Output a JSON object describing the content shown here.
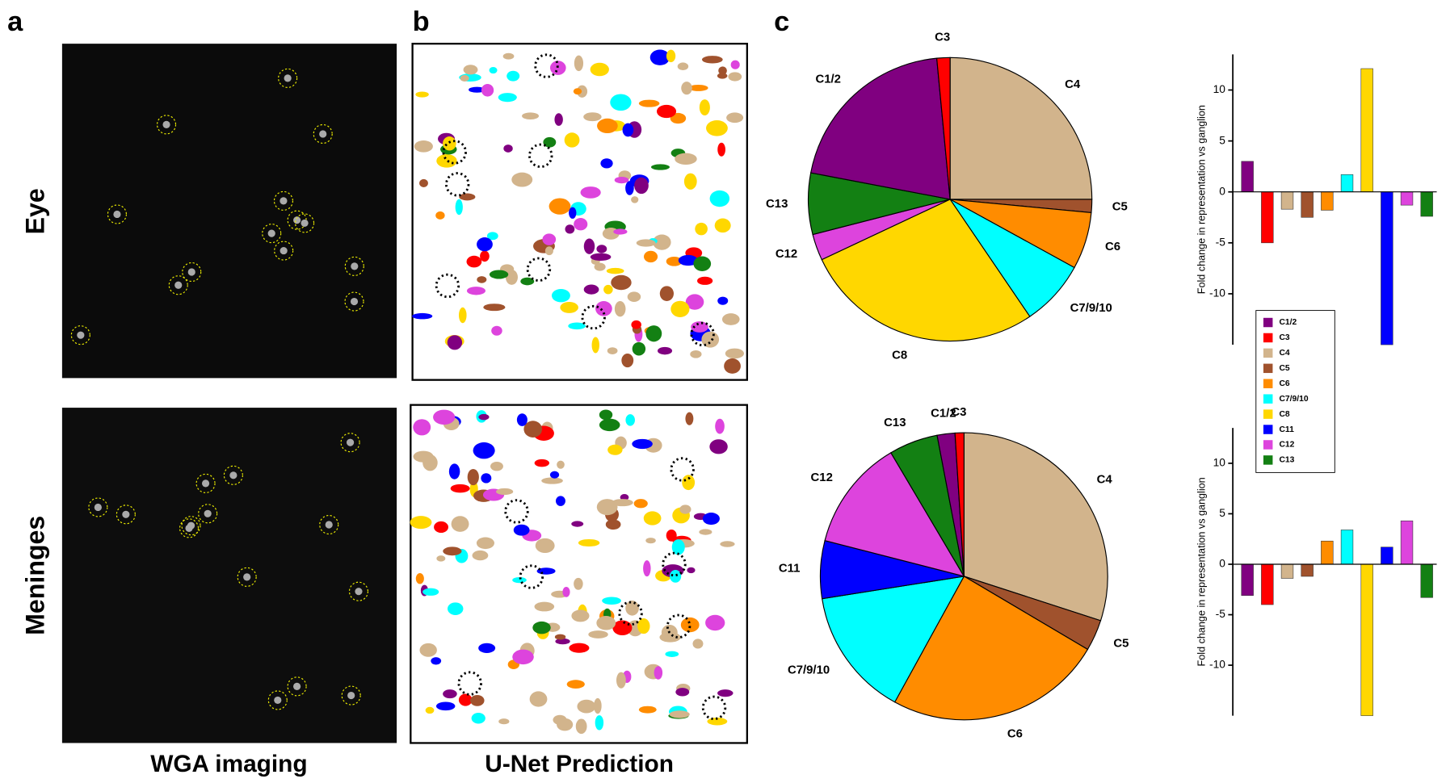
{
  "figure": {
    "panels": [
      "a",
      "b",
      "c"
    ],
    "rows": [
      "Eye",
      "Meninges"
    ],
    "columns": [
      "WGA imaging",
      "U-Net Prediction"
    ]
  },
  "chart_data": [
    {
      "type": "pie",
      "categories": [
        "C4",
        "C5",
        "C6",
        "C7/9/10",
        "C8",
        "C12",
        "C13",
        "C1/2",
        "C3"
      ],
      "values": [
        25,
        1.5,
        6.5,
        7.5,
        27.5,
        3,
        7,
        20.5,
        1.5
      ],
      "colors": [
        "#d2b48c",
        "#a0522d",
        "#ff8c00",
        "#00ffff",
        "#ffd700",
        "#dd44dd",
        "#138013",
        "#800080",
        "#ff0000"
      ]
    },
    {
      "type": "pie",
      "categories": [
        "C4",
        "C5",
        "C6",
        "C7/9/10",
        "C11",
        "C12",
        "C13",
        "C1/2",
        "C3"
      ],
      "values": [
        30,
        3.5,
        24.5,
        14.5,
        6.5,
        12.5,
        5.5,
        2,
        1
      ],
      "colors": [
        "#d2b48c",
        "#a0522d",
        "#ff8c00",
        "#00ffff",
        "#0000ff",
        "#dd44dd",
        "#138013",
        "#800080",
        "#ff0000"
      ]
    },
    {
      "type": "bar",
      "y_label": "Fold change in representation vs ganglion",
      "categories": [
        "C1/2",
        "C3",
        "C4",
        "C5",
        "C6",
        "C7/9/10",
        "C8",
        "C11",
        "C12",
        "C13"
      ],
      "values": [
        3,
        -5,
        -1.7,
        -2.5,
        -1.8,
        1.7,
        12.1,
        -15,
        -1.3,
        -2.4
      ],
      "colors": [
        "#800080",
        "#ff0000",
        "#d2b48c",
        "#a0522d",
        "#ff8c00",
        "#00ffff",
        "#ffd700",
        "#0000ff",
        "#dd44dd",
        "#138013"
      ],
      "ylim": [
        -15,
        13.5
      ],
      "yticks": [
        10,
        5,
        0,
        -5,
        -10
      ],
      "legend": true
    },
    {
      "type": "bar",
      "y_label": "Fold change in representation vs ganglion",
      "categories": [
        "C1/2",
        "C3",
        "C4",
        "C5",
        "C6",
        "C7/9/10",
        "C8",
        "C11",
        "C12",
        "C13"
      ],
      "values": [
        -3.1,
        -4,
        -1.4,
        -1.2,
        2.3,
        3.4,
        -15,
        1.7,
        4.3,
        -3.3
      ],
      "colors": [
        "#800080",
        "#ff0000",
        "#d2b48c",
        "#a0522d",
        "#ff8c00",
        "#00ffff",
        "#ffd700",
        "#0000ff",
        "#dd44dd",
        "#138013"
      ],
      "ylim": [
        -15,
        13.5
      ],
      "yticks": [
        10,
        5,
        0,
        -5,
        -10
      ],
      "legend": false
    }
  ]
}
